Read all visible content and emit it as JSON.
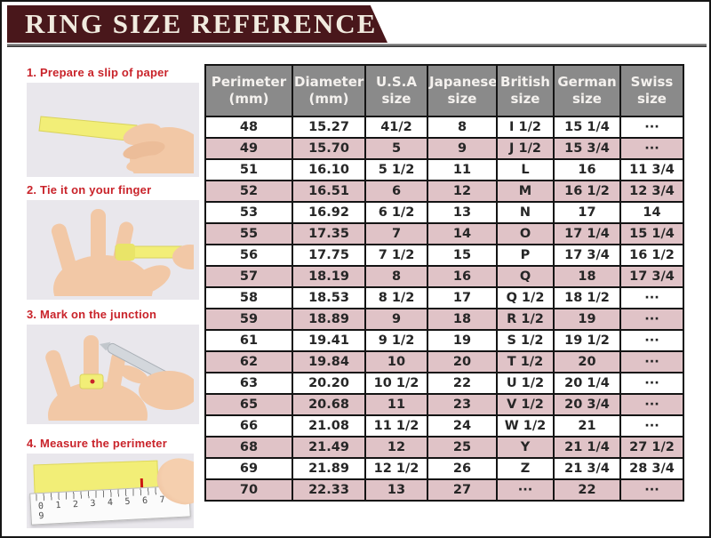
{
  "header": {
    "title": "RING SIZE REFERENCE"
  },
  "steps": {
    "items": [
      {
        "label": "1. Prepare a slip of paper"
      },
      {
        "label": "2. Tie it on your finger"
      },
      {
        "label": "3. Mark on the junction"
      },
      {
        "label": "4. Measure the perimeter",
        "ruler_numbers": "0 1 2 3 4 5 6 7 8 9"
      }
    ]
  },
  "table": {
    "columns": [
      "Perimeter\n(mm)",
      "Diameter\n(mm)",
      "U.S.A\nsize",
      "Japanese\nsize",
      "British\nsize",
      "German\nsize",
      "Swiss\nsize"
    ],
    "rows": [
      [
        "48",
        "15.27",
        "41/2",
        "8",
        "I 1/2",
        "15 1/4",
        "···"
      ],
      [
        "49",
        "15.70",
        "5",
        "9",
        "J 1/2",
        "15 3/4",
        "···"
      ],
      [
        "51",
        "16.10",
        "5 1/2",
        "11",
        "L",
        "16",
        "11 3/4"
      ],
      [
        "52",
        "16.51",
        "6",
        "12",
        "M",
        "16 1/2",
        "12 3/4"
      ],
      [
        "53",
        "16.92",
        "6 1/2",
        "13",
        "N",
        "17",
        "14"
      ],
      [
        "55",
        "17.35",
        "7",
        "14",
        "O",
        "17 1/4",
        "15 1/4"
      ],
      [
        "56",
        "17.75",
        "7 1/2",
        "15",
        "P",
        "17 3/4",
        "16 1/2"
      ],
      [
        "57",
        "18.19",
        "8",
        "16",
        "Q",
        "18",
        "17 3/4"
      ],
      [
        "58",
        "18.53",
        "8 1/2",
        "17",
        "Q 1/2",
        "18 1/2",
        "···"
      ],
      [
        "59",
        "18.89",
        "9",
        "18",
        "R 1/2",
        "19",
        "···"
      ],
      [
        "61",
        "19.41",
        "9 1/2",
        "19",
        "S 1/2",
        "19 1/2",
        "···"
      ],
      [
        "62",
        "19.84",
        "10",
        "20",
        "T 1/2",
        "20",
        "···"
      ],
      [
        "63",
        "20.20",
        "10 1/2",
        "22",
        "U 1/2",
        "20 1/4",
        "···"
      ],
      [
        "65",
        "20.68",
        "11",
        "23",
        "V 1/2",
        "20 3/4",
        "···"
      ],
      [
        "66",
        "21.08",
        "11 1/2",
        "24",
        "W 1/2",
        "21",
        "···"
      ],
      [
        "68",
        "21.49",
        "12",
        "25",
        "Y",
        "21 1/4",
        "27 1/2"
      ],
      [
        "69",
        "21.89",
        "12 1/2",
        "26",
        "Z",
        "21 3/4",
        "28 3/4"
      ],
      [
        "70",
        "22.33",
        "13",
        "27",
        "···",
        "22",
        "···"
      ]
    ]
  },
  "colors": {
    "banner_maroon": "#49171b",
    "header_gray": "#8a8a8a",
    "row_pink": "#e0c3c7",
    "caption_red": "#c9232a",
    "paper_yellow": "#f2ee77"
  }
}
